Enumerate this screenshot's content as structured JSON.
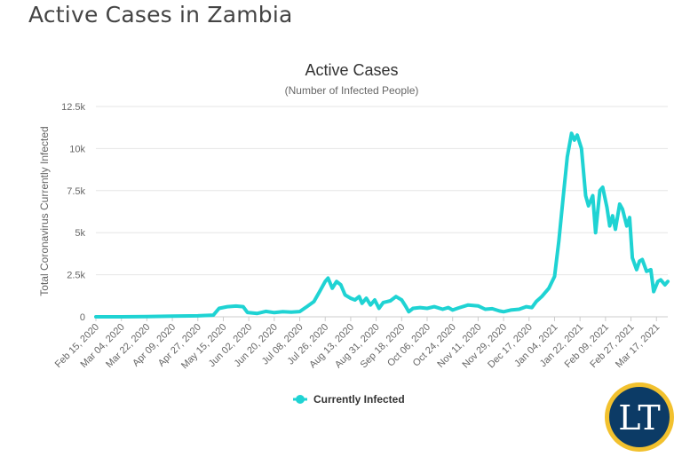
{
  "page": {
    "title": "Active Cases in Zambia"
  },
  "logo": {
    "text": "LT",
    "ring_color": "#f2c12e",
    "fill_color": "#0c3b66",
    "text_color": "#ffffff"
  },
  "chart_data": {
    "type": "line",
    "title": "Active Cases",
    "subtitle": "(Number of Infected People)",
    "ylabel": "Total Coronavirus Currently Infected",
    "xlabel": "",
    "ylim": [
      0,
      12500
    ],
    "yticks": [
      0,
      2500,
      5000,
      7500,
      10000,
      12500
    ],
    "ytick_labels": [
      "0",
      "2.5k",
      "5k",
      "7.5k",
      "10k",
      "12.5k"
    ],
    "x_start": "2020-02-15",
    "x_end": "2021-03-25",
    "xtick_dates": [
      "2020-02-15",
      "2020-03-04",
      "2020-03-22",
      "2020-04-09",
      "2020-04-27",
      "2020-05-15",
      "2020-06-02",
      "2020-06-20",
      "2020-07-08",
      "2020-07-26",
      "2020-08-13",
      "2020-08-31",
      "2020-09-18",
      "2020-10-06",
      "2020-10-24",
      "2020-11-11",
      "2020-11-29",
      "2020-12-17",
      "2021-01-04",
      "2021-01-22",
      "2021-02-09",
      "2021-02-27",
      "2021-03-17"
    ],
    "xtick_labels": [
      "Feb 15, 2020",
      "Mar 04, 2020",
      "Mar 22, 2020",
      "Apr 09, 2020",
      "Apr 27, 2020",
      "May 15, 2020",
      "Jun 02, 2020",
      "Jun 20, 2020",
      "Jul 08, 2020",
      "Jul 26, 2020",
      "Aug 13, 2020",
      "Aug 31, 2020",
      "Sep 18, 2020",
      "Oct 06, 2020",
      "Oct 24, 2020",
      "Nov 11, 2020",
      "Nov 29, 2020",
      "Dec 17, 2020",
      "Jan 04, 2021",
      "Jan 22, 2021",
      "Feb 09, 2021",
      "Feb 27, 2021",
      "Mar 17, 2021"
    ],
    "grid": true,
    "legend": {
      "position": "bottom-center"
    },
    "series": [
      {
        "name": "Currently Infected",
        "color": "#1fd3d3",
        "points": [
          [
            "2020-02-15",
            0
          ],
          [
            "2020-03-04",
            0
          ],
          [
            "2020-03-22",
            10
          ],
          [
            "2020-04-09",
            40
          ],
          [
            "2020-04-27",
            60
          ],
          [
            "2020-05-08",
            100
          ],
          [
            "2020-05-12",
            500
          ],
          [
            "2020-05-18",
            600
          ],
          [
            "2020-05-24",
            640
          ],
          [
            "2020-05-29",
            600
          ],
          [
            "2020-06-01",
            260
          ],
          [
            "2020-06-08",
            200
          ],
          [
            "2020-06-14",
            320
          ],
          [
            "2020-06-20",
            250
          ],
          [
            "2020-06-26",
            300
          ],
          [
            "2020-07-02",
            280
          ],
          [
            "2020-07-08",
            310
          ],
          [
            "2020-07-13",
            600
          ],
          [
            "2020-07-18",
            900
          ],
          [
            "2020-07-22",
            1500
          ],
          [
            "2020-07-26",
            2100
          ],
          [
            "2020-07-28",
            2300
          ],
          [
            "2020-07-31",
            1700
          ],
          [
            "2020-08-03",
            2100
          ],
          [
            "2020-08-06",
            1900
          ],
          [
            "2020-08-09",
            1300
          ],
          [
            "2020-08-13",
            1100
          ],
          [
            "2020-08-16",
            1000
          ],
          [
            "2020-08-19",
            1200
          ],
          [
            "2020-08-21",
            800
          ],
          [
            "2020-08-24",
            1100
          ],
          [
            "2020-08-27",
            700
          ],
          [
            "2020-08-30",
            1000
          ],
          [
            "2020-09-02",
            500
          ],
          [
            "2020-09-05",
            850
          ],
          [
            "2020-09-10",
            950
          ],
          [
            "2020-09-14",
            1200
          ],
          [
            "2020-09-18",
            1000
          ],
          [
            "2020-09-21",
            600
          ],
          [
            "2020-09-23",
            300
          ],
          [
            "2020-09-26",
            500
          ],
          [
            "2020-10-01",
            550
          ],
          [
            "2020-10-06",
            500
          ],
          [
            "2020-10-11",
            600
          ],
          [
            "2020-10-17",
            450
          ],
          [
            "2020-10-21",
            550
          ],
          [
            "2020-10-24",
            400
          ],
          [
            "2020-10-28",
            520
          ],
          [
            "2020-11-04",
            700
          ],
          [
            "2020-11-11",
            650
          ],
          [
            "2020-11-16",
            450
          ],
          [
            "2020-11-21",
            480
          ],
          [
            "2020-11-26",
            350
          ],
          [
            "2020-11-29",
            300
          ],
          [
            "2020-12-04",
            400
          ],
          [
            "2020-12-10",
            450
          ],
          [
            "2020-12-15",
            600
          ],
          [
            "2020-12-19",
            550
          ],
          [
            "2020-12-22",
            900
          ],
          [
            "2020-12-26",
            1200
          ],
          [
            "2020-12-31",
            1700
          ],
          [
            "2021-01-04",
            2400
          ],
          [
            "2021-01-07",
            4500
          ],
          [
            "2021-01-10",
            7000
          ],
          [
            "2021-01-13",
            9500
          ],
          [
            "2021-01-16",
            10900
          ],
          [
            "2021-01-18",
            10500
          ],
          [
            "2021-01-20",
            10800
          ],
          [
            "2021-01-23",
            10000
          ],
          [
            "2021-01-26",
            7200
          ],
          [
            "2021-01-28",
            6600
          ],
          [
            "2021-01-31",
            7200
          ],
          [
            "2021-02-02",
            5000
          ],
          [
            "2021-02-05",
            7500
          ],
          [
            "2021-02-07",
            7700
          ],
          [
            "2021-02-10",
            6500
          ],
          [
            "2021-02-12",
            5400
          ],
          [
            "2021-02-14",
            6000
          ],
          [
            "2021-02-16",
            5200
          ],
          [
            "2021-02-19",
            6700
          ],
          [
            "2021-02-21",
            6400
          ],
          [
            "2021-02-24",
            5400
          ],
          [
            "2021-02-26",
            5900
          ],
          [
            "2021-02-28",
            3500
          ],
          [
            "2021-03-03",
            2800
          ],
          [
            "2021-03-05",
            3300
          ],
          [
            "2021-03-07",
            3400
          ],
          [
            "2021-03-10",
            2700
          ],
          [
            "2021-03-13",
            2800
          ],
          [
            "2021-03-15",
            1500
          ],
          [
            "2021-03-18",
            2100
          ],
          [
            "2021-03-20",
            2200
          ],
          [
            "2021-03-23",
            1900
          ],
          [
            "2021-03-25",
            2100
          ]
        ]
      }
    ]
  }
}
